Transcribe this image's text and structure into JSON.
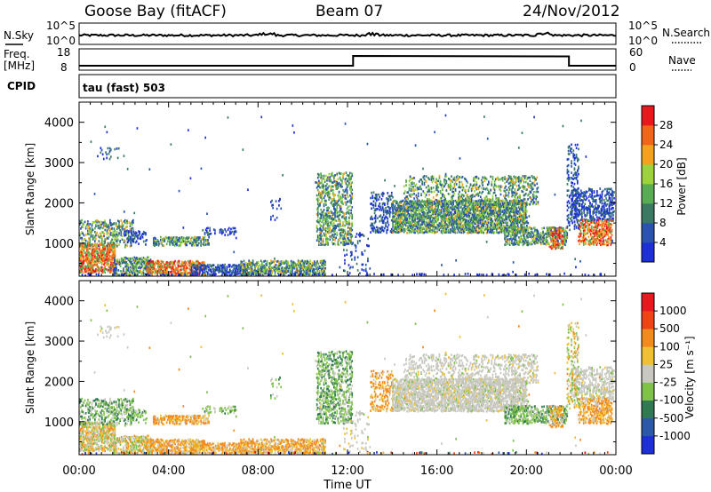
{
  "header": {
    "title": "Goose Bay (fitACF)",
    "beam": "Beam 07",
    "date": "24/Nov/2012"
  },
  "status_panels": {
    "nsky_label": "N.Sky",
    "nsky_ticks": [
      "10^5",
      "10^0"
    ],
    "nsearch_label": "N.Search",
    "nsearch_ticks": [
      "10^5",
      "10^0"
    ],
    "freq_label": "Freq.",
    "freq_unit": "[MHz]",
    "freq_ticks": [
      "18",
      "8"
    ],
    "nave_label": "Nave",
    "nave_ticks": [
      "60",
      "0"
    ],
    "cpid_label": "CPID",
    "cpid_value": "tau (fast) 503"
  },
  "chart_data": [
    {
      "type": "heatmap",
      "panel": "power",
      "ylabel": "Slant Range [km]",
      "xlabel": "",
      "ylim": [
        180,
        4500
      ],
      "yticks": [
        "1000",
        "2000",
        "3000",
        "4000"
      ],
      "colorbar_label": "Power [dB]",
      "colorbar_ticks": [
        "4",
        "8",
        "12",
        "16",
        "20",
        "24",
        "28"
      ],
      "colors": [
        "#1c2fd8",
        "#2a53b0",
        "#3a7a62",
        "#58ad52",
        "#9cd23c",
        "#f3a21c",
        "#f26418",
        "#e8191c"
      ]
    },
    {
      "type": "heatmap",
      "panel": "velocity",
      "ylabel": "Slant Range [km]",
      "xlabel": "Time UT",
      "xticks": [
        "00:00",
        "04:00",
        "08:00",
        "12:00",
        "16:00",
        "20:00",
        "00:00"
      ],
      "ylim": [
        180,
        4500
      ],
      "yticks": [
        "1000",
        "2000",
        "3000",
        "4000"
      ],
      "colorbar_label": "Velocity [m s⁻¹]",
      "colorbar_ticks": [
        "1000",
        "500",
        "100",
        "25",
        "-25",
        "-100",
        "-500",
        "-1000"
      ],
      "colors": [
        "#1c2fd8",
        "#2b58a8",
        "#2f7a50",
        "#7fc24a",
        "#c8c8c0",
        "#f0c030",
        "#f28a1c",
        "#f04418",
        "#e8191c"
      ]
    }
  ]
}
